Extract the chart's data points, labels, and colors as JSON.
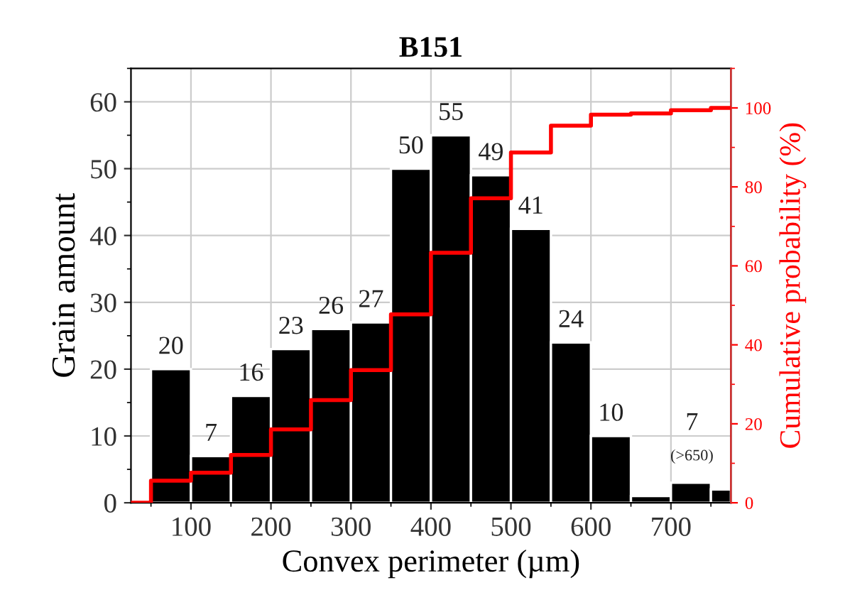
{
  "chart_data": {
    "type": "histogram",
    "title": "B151",
    "xlabel": "Convex perimeter (µm)",
    "ylabel": "Grain amount",
    "y2label": "Cumulative probability (%)",
    "bins": [
      50,
      100,
      150,
      200,
      250,
      300,
      350,
      400,
      450,
      500,
      550,
      600,
      650,
      700,
      750,
      775
    ],
    "values": [
      20,
      7,
      16,
      23,
      26,
      27,
      50,
      55,
      49,
      41,
      24,
      10,
      1,
      3,
      2
    ],
    "value_labels": [
      "20",
      "7",
      "16",
      "23",
      "26",
      "27",
      "50",
      "55",
      "49",
      "41",
      "24",
      "10",
      null,
      null,
      null
    ],
    "color": "#000000",
    "series": [
      {
        "type": "step",
        "axis": "y2",
        "color": "#ff0000",
        "x": [
          25,
          50,
          100,
          150,
          200,
          250,
          300,
          350,
          400,
          450,
          500,
          550,
          600,
          650,
          700,
          750,
          775
        ],
        "values": [
          0,
          5.6,
          7.6,
          12.1,
          18.6,
          26.0,
          33.6,
          47.7,
          63.3,
          77.1,
          88.7,
          95.5,
          98.3,
          98.6,
          99.4,
          100,
          100
        ]
      }
    ],
    "annotations": [
      "7",
      "(>650)"
    ],
    "xlim": [
      25,
      775
    ],
    "xticks": [
      100,
      200,
      300,
      400,
      500,
      600,
      700
    ],
    "ylim": [
      0,
      65
    ],
    "yticks": [
      0,
      10,
      20,
      30,
      40,
      50,
      60
    ],
    "y2lim": [
      0,
      110
    ],
    "y2ticks": [
      0,
      20,
      40,
      60,
      80,
      100
    ],
    "grid": true
  }
}
